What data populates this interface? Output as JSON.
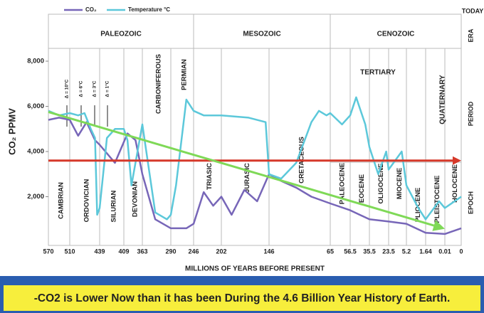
{
  "chart_data": {
    "type": "line",
    "legend": {
      "position": "top-left"
    },
    "y_axis_title": "CO₂ PPMV",
    "x_axis_title": "MILLIONS OF YEARS BEFORE PRESENT",
    "today_label": "TODAY",
    "row_labels": [
      "ERA",
      "PERIOD",
      "EPOCH"
    ],
    "xticks": [
      570,
      510,
      439,
      409,
      363,
      290,
      246,
      202,
      146,
      65,
      56.5,
      35.5,
      23.5,
      5.2,
      1.64,
      0.01,
      0
    ],
    "ylim": [
      0,
      8000
    ],
    "yticks": [
      {
        "value": 2000,
        "label": "2,000"
      },
      {
        "value": 4000,
        "label": "4,000"
      },
      {
        "value": 6000,
        "label": "6,000"
      },
      {
        "value": 8000,
        "label": "8,000"
      }
    ],
    "eras": [
      "PALEOZOIC",
      "MESOZOIC",
      "CENOZOIC"
    ],
    "periods": [
      "CAMBRIAN",
      "ORDOVICIAN",
      "SILURIAN",
      "DEVONIAN",
      "CARBONIFEROUS",
      "PERMIAN",
      "TRIASIC",
      "JURASIC",
      "CRETACEOUS",
      "PALEOCENE",
      "EOCENE",
      "OLIGOCENE",
      "MIOCENE",
      "PLIOCENE",
      "PLEISTOCENE",
      "HOLOCENE"
    ],
    "cenozoic_periods": [
      "TERTIARY",
      "QUATERNARY"
    ],
    "annotations": [
      "Δ = 10°C",
      "Δ = 6°C",
      "Δ = 3°C",
      "Δ = 1°C"
    ],
    "series": [
      {
        "name": "CO₂",
        "color": "#7766b8",
        "x": [
          570,
          540,
          510,
          490,
          470,
          450,
          439,
          420,
          400,
          380,
          363,
          330,
          290,
          260,
          246,
          230,
          215,
          202,
          190,
          175,
          160,
          146,
          130,
          110,
          90,
          65,
          56.5,
          35.5,
          23.5,
          5.2,
          1.64,
          0.01,
          0
        ],
        "values": [
          5400,
          5500,
          5400,
          4700,
          5300,
          4500,
          4300,
          3500,
          4800,
          4500,
          3000,
          1000,
          600,
          600,
          800,
          2200,
          1600,
          2000,
          1200,
          2300,
          1800,
          3000,
          2700,
          2400,
          2000,
          1700,
          1400,
          1000,
          900,
          800,
          400,
          350,
          600
        ]
      },
      {
        "name": "Temperature °C",
        "color": "#5cc8da",
        "x": [
          570,
          540,
          510,
          490,
          475,
          460,
          450,
          445,
          439,
          430,
          420,
          409,
          400,
          390,
          363,
          330,
          300,
          290,
          280,
          260,
          246,
          230,
          202,
          170,
          150,
          146,
          130,
          110,
          90,
          80,
          70,
          65,
          60,
          56.5,
          50,
          40,
          35.5,
          30,
          25,
          23.5,
          10,
          5.2,
          3,
          1.64,
          0.5,
          0.01,
          0
        ],
        "values": [
          5800,
          5600,
          5700,
          5600,
          5700,
          5000,
          4600,
          1200,
          1500,
          4600,
          5000,
          5000,
          4500,
          2500,
          5200,
          1300,
          1000,
          1200,
          2500,
          6300,
          5800,
          5600,
          5600,
          5500,
          5300,
          3000,
          2800,
          3500,
          5300,
          5800,
          5600,
          5700,
          5200,
          5600,
          6400,
          5200,
          4200,
          3000,
          4000,
          3200,
          4000,
          2500,
          1500,
          1000,
          1800,
          1500,
          2000
        ]
      }
    ],
    "reference_line": {
      "value": 3600,
      "color": "#d6392a"
    },
    "trend": {
      "x": [
        570,
        0.01
      ],
      "values": [
        5750,
        580
      ],
      "color": "#7fd957"
    },
    "banner": "-CO2 is Lower Now than it has been During the 4.6 Billion Year History of Earth."
  }
}
